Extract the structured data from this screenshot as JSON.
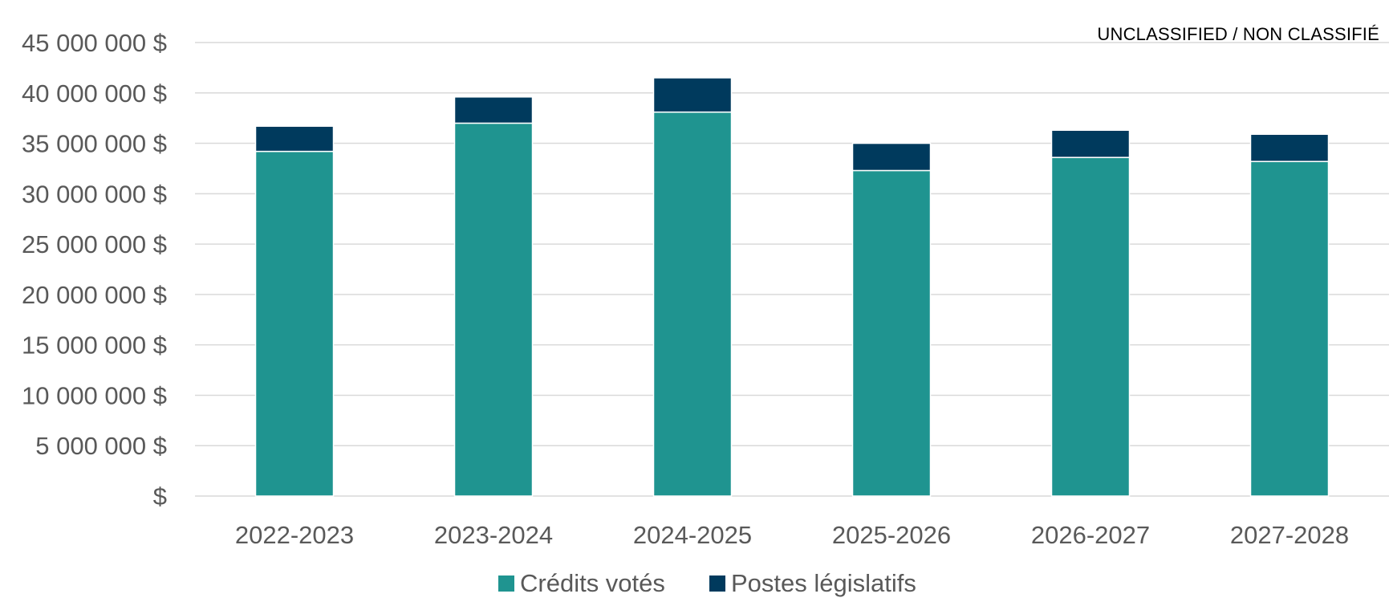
{
  "classification_label": "UNCLASSIFIED / NON CLASSIFIÉ",
  "chart_data": {
    "type": "bar",
    "stacked": true,
    "title": "",
    "xlabel": "",
    "ylabel": "",
    "categories": [
      "2022-2023",
      "2023-2024",
      "2024-2025",
      "2025-2026",
      "2026-2027",
      "2027-2028"
    ],
    "series": [
      {
        "name": "Crédits votés",
        "color": "#1f9490",
        "values": [
          34200000,
          37000000,
          38100000,
          32300000,
          33600000,
          33200000
        ]
      },
      {
        "name": "Postes législatifs",
        "color": "#003a5d",
        "values": [
          2500000,
          2600000,
          3400000,
          2700000,
          2700000,
          2700000
        ]
      }
    ],
    "ylim": [
      0,
      45000000
    ],
    "yticks": [
      0,
      5000000,
      10000000,
      15000000,
      20000000,
      25000000,
      30000000,
      35000000,
      40000000,
      45000000
    ],
    "ytick_labels": [
      "$",
      "5 000 000 $",
      "10 000 000 $",
      "15 000 000 $",
      "20 000 000 $",
      "25 000 000 $",
      "30 000 000 $",
      "35 000 000 $",
      "40 000 000 $",
      "45 000 000 $"
    ],
    "grid": true,
    "legend_position": "bottom",
    "colors": {
      "grid": "#d9d9d9",
      "axis_text": "#595959",
      "legend_text": "#595959"
    }
  }
}
